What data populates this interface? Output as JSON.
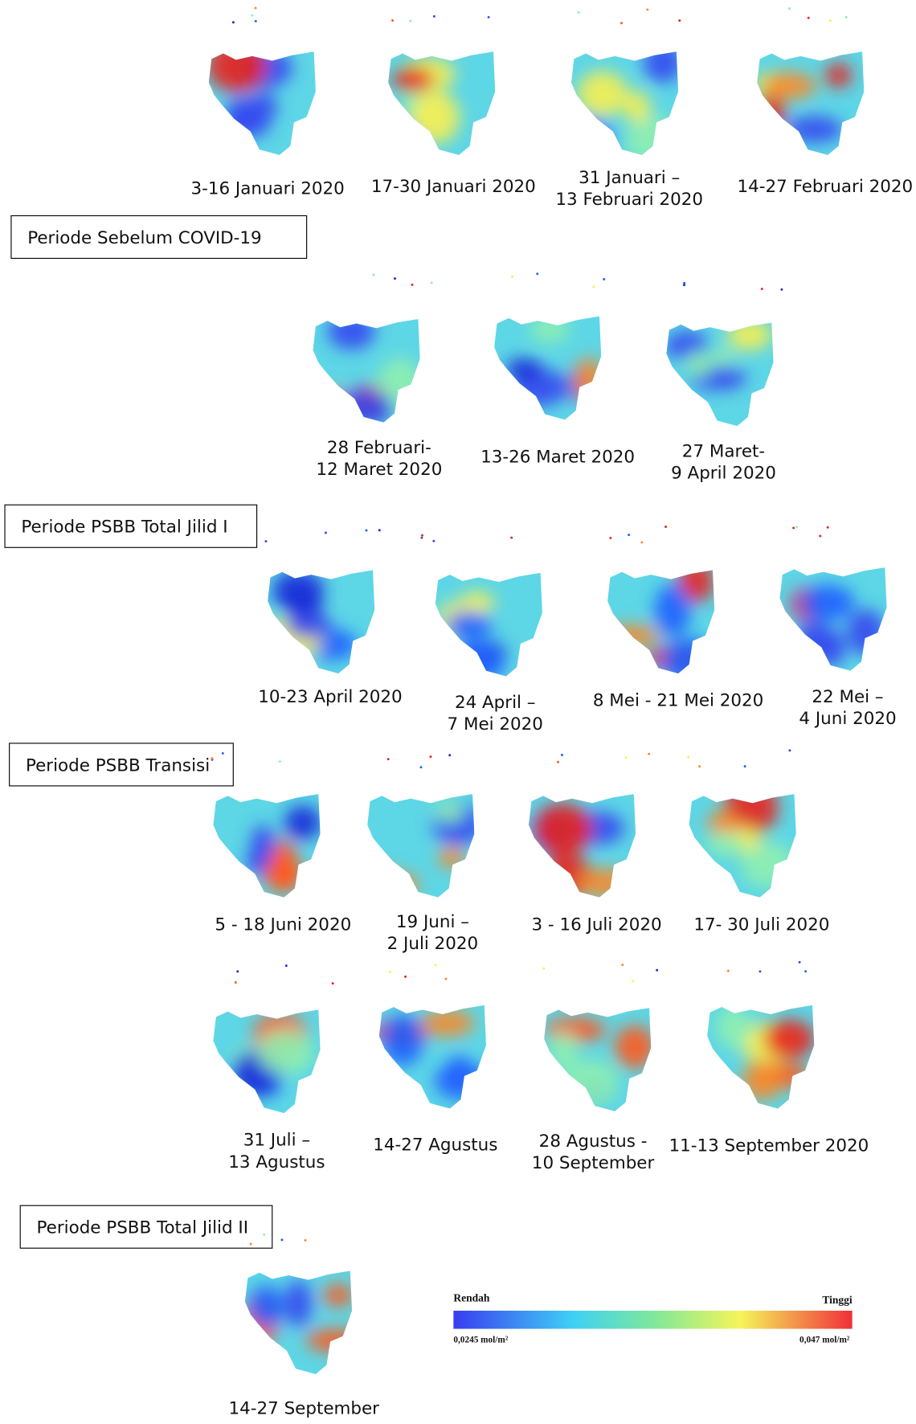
{
  "period_labels": [
    "Periode Sebelum COVID-19",
    "Periode PSBB Total Jilid I",
    "Periode PSBB Transisi",
    "Periode PSBB Total Jilid II"
  ],
  "maps": [
    {
      "caption": [
        "3-16 Januari 2020"
      ]
    },
    {
      "caption": [
        "17-30 Januari 2020"
      ]
    },
    {
      "caption": [
        "31 Januari –",
        "13 Februari 2020"
      ]
    },
    {
      "caption": [
        "14-27 Februari 2020"
      ]
    },
    {
      "caption": [
        "28 Februari-",
        "12 Maret 2020"
      ]
    },
    {
      "caption": [
        "13-26 Maret 2020"
      ]
    },
    {
      "caption": [
        "27 Maret-",
        "9 April 2020"
      ]
    },
    {
      "caption": [
        "10-23 April 2020"
      ]
    },
    {
      "caption": [
        "24 April –",
        "7 Mei 2020"
      ]
    },
    {
      "caption": [
        "8 Mei - 21 Mei 2020"
      ]
    },
    {
      "caption": [
        "22 Mei –",
        "4 Juni 2020"
      ]
    },
    {
      "caption": [
        "5 - 18 Juni 2020"
      ]
    },
    {
      "caption": [
        "19 Juni –",
        "2 Juli 2020"
      ]
    },
    {
      "caption": [
        "3 - 16 Juli 2020"
      ]
    },
    {
      "caption": [
        "17- 30 Juli 2020"
      ]
    },
    {
      "caption": [
        "31 Juli –",
        "13 Agustus"
      ]
    },
    {
      "caption": [
        "14-27 Agustus"
      ]
    },
    {
      "caption": [
        "28 Agustus -",
        "10 September"
      ]
    },
    {
      "caption": [
        "11-13 September 2020"
      ]
    },
    {
      "caption": [
        "14-27 September"
      ]
    }
  ],
  "legend": {
    "low": "Rendah",
    "high": "Tinggi",
    "min": "0,0245 mol/m²",
    "max": "0,047 mol/m²"
  }
}
